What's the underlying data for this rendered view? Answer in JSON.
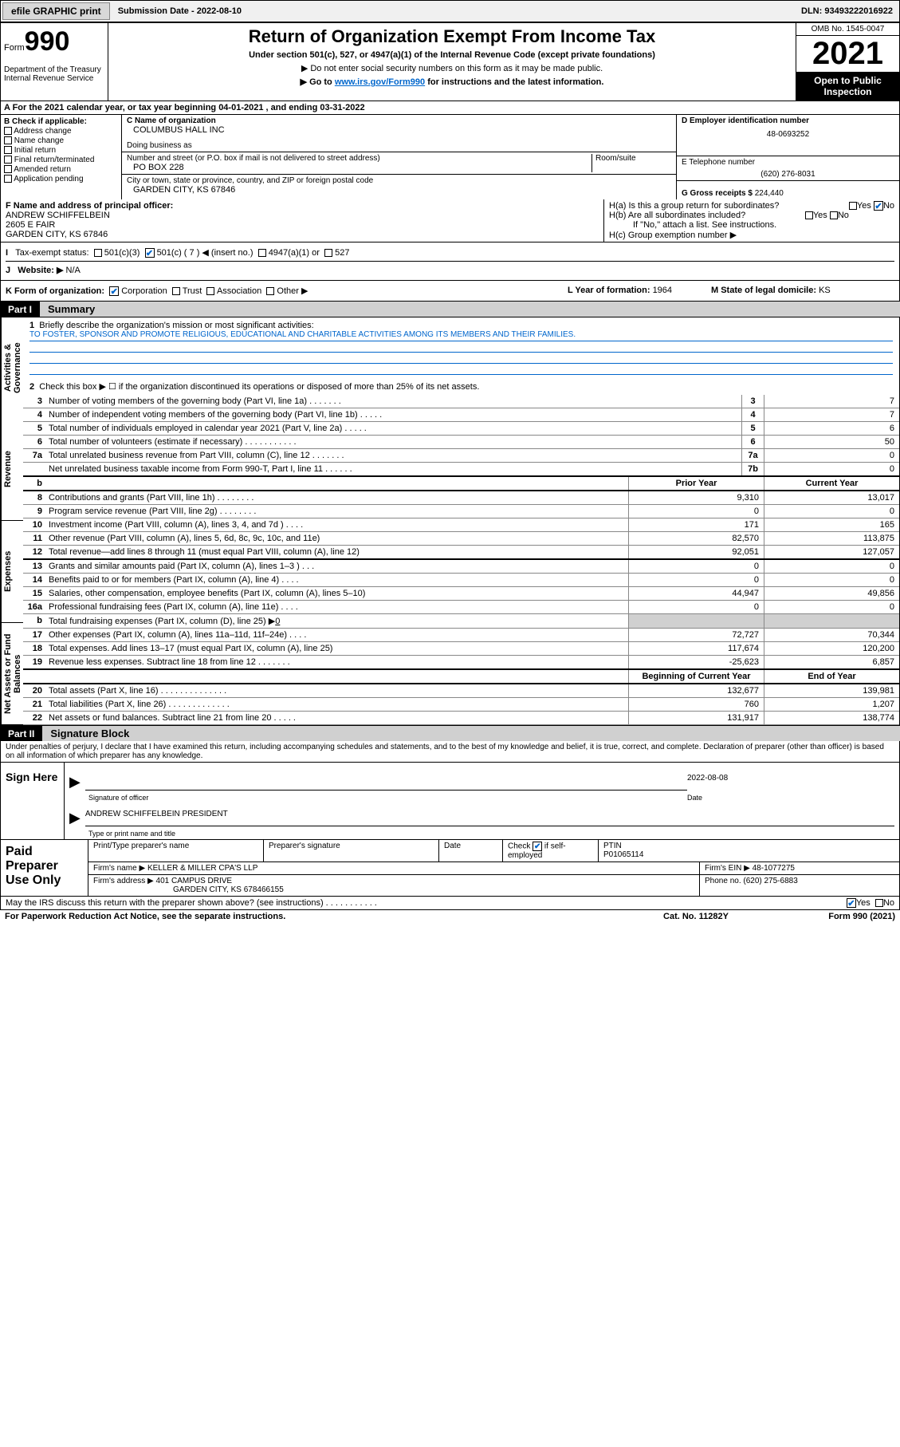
{
  "topbar": {
    "efile": "efile GRAPHIC print",
    "sub_label": "Submission Date - ",
    "sub_date": "2022-08-10",
    "dln_label": "DLN: ",
    "dln": "93493222016922"
  },
  "header": {
    "form_word": "Form",
    "form_num": "990",
    "dept": "Department of the Treasury Internal Revenue Service",
    "title": "Return of Organization Exempt From Income Tax",
    "sub1": "Under section 501(c), 527, or 4947(a)(1) of the Internal Revenue Code (except private foundations)",
    "sub2": "▶ Do not enter social security numbers on this form as it may be made public.",
    "sub3_a": "▶ Go to ",
    "sub3_link": "www.irs.gov/Form990",
    "sub3_b": " for instructions and the latest information.",
    "omb": "OMB No. 1545-0047",
    "year": "2021",
    "open": "Open to Public Inspection"
  },
  "row_a": "A For the 2021 calendar year, or tax year beginning 04-01-2021   , and ending 03-31-2022",
  "col_b": {
    "hdr": "B Check if applicable:",
    "items": [
      "Address change",
      "Name change",
      "Initial return",
      "Final return/terminated",
      "Amended return",
      "Application pending"
    ]
  },
  "col_c": {
    "name_lbl": "C Name of organization",
    "name": "COLUMBUS HALL INC",
    "dba_lbl": "Doing business as",
    "addr_lbl": "Number and street (or P.O. box if mail is not delivered to street address)",
    "room_lbl": "Room/suite",
    "addr": "PO BOX 228",
    "city_lbl": "City or town, state or province, country, and ZIP or foreign postal code",
    "city": "GARDEN CITY, KS  67846"
  },
  "col_d": {
    "ein_lbl": "D Employer identification number",
    "ein": "48-0693252",
    "tel_lbl": "E Telephone number",
    "tel": "(620) 276-8031",
    "gross_lbl": "G Gross receipts $ ",
    "gross": "224,440"
  },
  "row_f": {
    "lbl": "F Name and address of principal officer:",
    "name": "ANDREW SCHIFFELBEIN",
    "addr1": "2605 E FAIR",
    "addr2": "GARDEN CITY, KS  67846"
  },
  "row_h": {
    "ha": "H(a)  Is this a group return for subordinates?",
    "hb": "H(b)  Are all subordinates included?",
    "hb_note": "If \"No,\" attach a list. See instructions.",
    "hc": "H(c)  Group exemption number ▶",
    "yes": "Yes",
    "no": "No"
  },
  "row_i": {
    "lbl": "Tax-exempt status:",
    "o1": "501(c)(3)",
    "o2": "501(c) ( 7 ) ◀ (insert no.)",
    "o3": "4947(a)(1) or",
    "o4": "527"
  },
  "row_j": {
    "lbl": "Website: ▶",
    "val": "N/A"
  },
  "row_k": {
    "lbl": "K Form of organization:",
    "o1": "Corporation",
    "o2": "Trust",
    "o3": "Association",
    "o4": "Other ▶",
    "l_lbl": "L Year of formation: ",
    "l_val": "1964",
    "m_lbl": "M State of legal domicile: ",
    "m_val": "KS"
  },
  "part1": {
    "num": "Part I",
    "title": "Summary"
  },
  "tabs": {
    "t1": "Activities & Governance",
    "t2": "Revenue",
    "t3": "Expenses",
    "t4": "Net Assets or Fund Balances"
  },
  "mission": {
    "lbl": "Briefly describe the organization's mission or most significant activities:",
    "text": "TO FOSTER, SPONSOR AND PROMOTE RELIGIOUS, EDUCATIONAL AND CHARITABLE ACTIVITIES AMONG ITS MEMBERS AND THEIR FAMILIES."
  },
  "line2": "Check this box ▶ ☐  if the organization discontinued its operations or disposed of more than 25% of its net assets.",
  "gov_lines": [
    {
      "n": "3",
      "d": "Number of voting members of the governing body (Part VI, line 1a)  .  .  .  .  .  .  .",
      "b": "3",
      "v": "7"
    },
    {
      "n": "4",
      "d": "Number of independent voting members of the governing body (Part VI, line 1b)  .  .  .  .  .",
      "b": "4",
      "v": "7"
    },
    {
      "n": "5",
      "d": "Total number of individuals employed in calendar year 2021 (Part V, line 2a)  .  .  .  .  .",
      "b": "5",
      "v": "6"
    },
    {
      "n": "6",
      "d": "Total number of volunteers (estimate if necessary)   .  .  .  .  .  .  .  .  .  .  .",
      "b": "6",
      "v": "50"
    },
    {
      "n": "7a",
      "d": "Total unrelated business revenue from Part VIII, column (C), line 12  .  .  .  .  .  .  .",
      "b": "7a",
      "v": "0"
    },
    {
      "n": "",
      "d": "Net unrelated business taxable income from Form 990-T, Part I, line 11  .  .  .  .  .  .",
      "b": "7b",
      "v": "0"
    }
  ],
  "col_hdrs": {
    "prior": "Prior Year",
    "current": "Current Year"
  },
  "rev_lines": [
    {
      "n": "8",
      "d": "Contributions and grants (Part VIII, line 1h)  .  .  .  .  .  .  .  .",
      "p": "9,310",
      "c": "13,017"
    },
    {
      "n": "9",
      "d": "Program service revenue (Part VIII, line 2g)  .  .  .  .  .  .  .  .",
      "p": "0",
      "c": "0"
    },
    {
      "n": "10",
      "d": "Investment income (Part VIII, column (A), lines 3, 4, and 7d )  .  .  .  .",
      "p": "171",
      "c": "165"
    },
    {
      "n": "11",
      "d": "Other revenue (Part VIII, column (A), lines 5, 6d, 8c, 9c, 10c, and 11e)",
      "p": "82,570",
      "c": "113,875"
    },
    {
      "n": "12",
      "d": "Total revenue—add lines 8 through 11 (must equal Part VIII, column (A), line 12)",
      "p": "92,051",
      "c": "127,057"
    }
  ],
  "exp_lines": [
    {
      "n": "13",
      "d": "Grants and similar amounts paid (Part IX, column (A), lines 1–3 )  .  .  .",
      "p": "0",
      "c": "0"
    },
    {
      "n": "14",
      "d": "Benefits paid to or for members (Part IX, column (A), line 4)  .  .  .  .",
      "p": "0",
      "c": "0"
    },
    {
      "n": "15",
      "d": "Salaries, other compensation, employee benefits (Part IX, column (A), lines 5–10)",
      "p": "44,947",
      "c": "49,856"
    },
    {
      "n": "16a",
      "d": "Professional fundraising fees (Part IX, column (A), line 11e)  .  .  .  .",
      "p": "0",
      "c": "0"
    }
  ],
  "line16b": {
    "n": "b",
    "d": "Total fundraising expenses (Part IX, column (D), line 25) ▶",
    "v": "0"
  },
  "exp_lines2": [
    {
      "n": "17",
      "d": "Other expenses (Part IX, column (A), lines 11a–11d, 11f–24e)  .  .  .  .",
      "p": "72,727",
      "c": "70,344"
    },
    {
      "n": "18",
      "d": "Total expenses. Add lines 13–17 (must equal Part IX, column (A), line 25)",
      "p": "117,674",
      "c": "120,200"
    },
    {
      "n": "19",
      "d": "Revenue less expenses. Subtract line 18 from line 12  .  .  .  .  .  .  .",
      "p": "-25,623",
      "c": "6,857"
    }
  ],
  "net_hdrs": {
    "begin": "Beginning of Current Year",
    "end": "End of Year"
  },
  "net_lines": [
    {
      "n": "20",
      "d": "Total assets (Part X, line 16)  .  .  .  .  .  .  .  .  .  .  .  .  .  .",
      "p": "132,677",
      "c": "139,981"
    },
    {
      "n": "21",
      "d": "Total liabilities (Part X, line 26)  .  .  .  .  .  .  .  .  .  .  .  .  .",
      "p": "760",
      "c": "1,207"
    },
    {
      "n": "22",
      "d": "Net assets or fund balances. Subtract line 21 from line 20  .  .  .  .  .",
      "p": "131,917",
      "c": "138,774"
    }
  ],
  "part2": {
    "num": "Part II",
    "title": "Signature Block"
  },
  "sig_text": "Under penalties of perjury, I declare that I have examined this return, including accompanying schedules and statements, and to the best of my knowledge and belief, it is true, correct, and complete. Declaration of preparer (other than officer) is based on all information of which preparer has any knowledge.",
  "sign": {
    "here": "Sign Here",
    "sig_lbl": "Signature of officer",
    "date_lbl": "Date",
    "date": "2022-08-08",
    "name": "ANDREW SCHIFFELBEIN  PRESIDENT",
    "name_lbl": "Type or print name and title"
  },
  "prep": {
    "title": "Paid Preparer Use Only",
    "h1": "Print/Type preparer's name",
    "h2": "Preparer's signature",
    "h3": "Date",
    "h4a": "Check",
    "h4b": "if self-employed",
    "h5": "PTIN",
    "ptin": "P01065114",
    "firm_lbl": "Firm's name    ▶",
    "firm": "KELLER & MILLER CPA'S LLP",
    "ein_lbl": "Firm's EIN ▶",
    "ein": "48-1077275",
    "addr_lbl": "Firm's address ▶",
    "addr1": "401 CAMPUS DRIVE",
    "addr2": "GARDEN CITY, KS  678466155",
    "phone_lbl": "Phone no. ",
    "phone": "(620) 275-6883"
  },
  "discuss": {
    "q": "May the IRS discuss this return with the preparer shown above? (see instructions)   .  .  .  .  .  .  .  .  .  .  .",
    "yes": "Yes",
    "no": "No"
  },
  "bottom": {
    "l": "For Paperwork Reduction Act Notice, see the separate instructions.",
    "m": "Cat. No. 11282Y",
    "r": "Form 990 (2021)"
  }
}
